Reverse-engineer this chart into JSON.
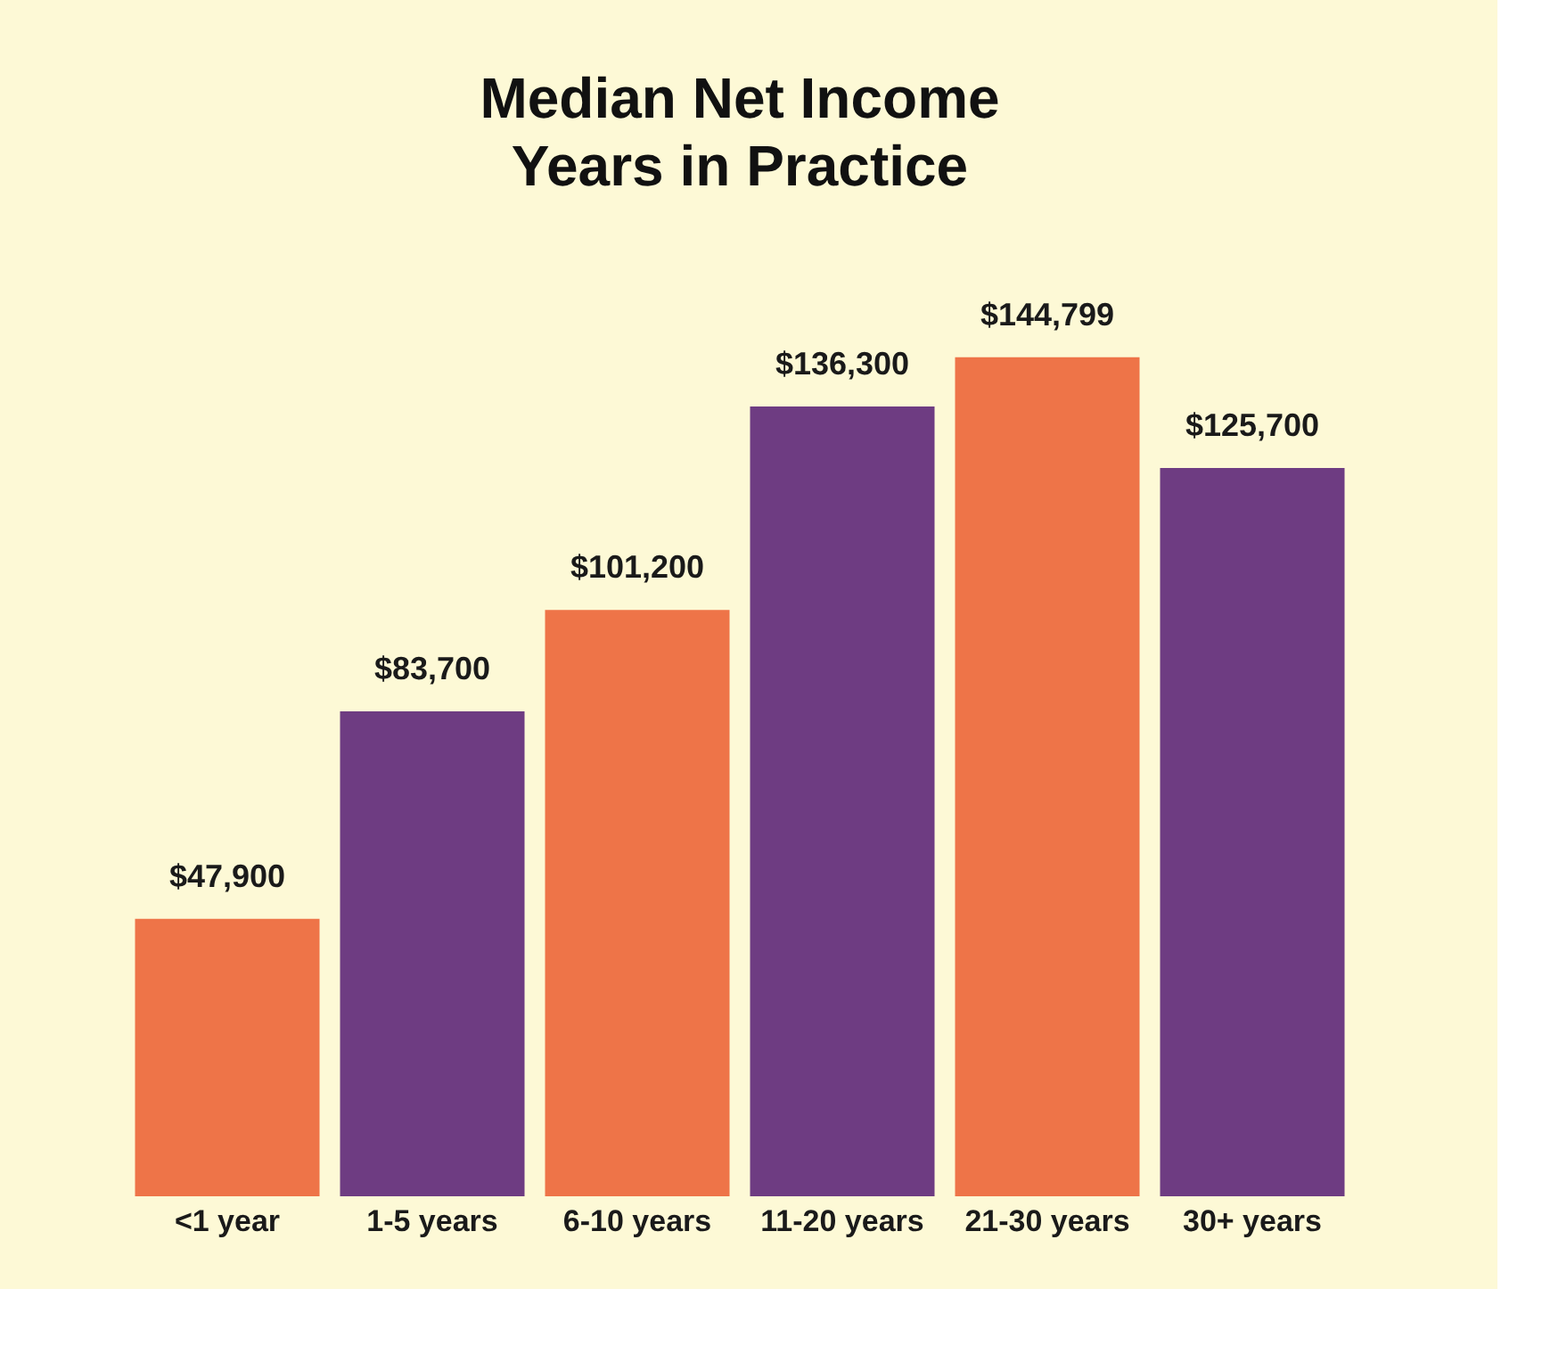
{
  "chart_data": {
    "type": "bar",
    "title": "Median Net Income\nYears in Practice",
    "categories": [
      "<1 year",
      "1-5 years",
      "6-10 years",
      "11-20 years",
      "21-30 years",
      "30+ years"
    ],
    "values": [
      47900,
      83700,
      101200,
      136300,
      144799,
      125700
    ],
    "colors": [
      "#ee7448",
      "#6e3c82",
      "#ee7448",
      "#6e3c82",
      "#ee7448",
      "#6e3c82"
    ],
    "value_labels": [
      "$47,900",
      "$83,700",
      "$101,200",
      "$136,300",
      "$144,799",
      "$125,700"
    ],
    "grid": false
  }
}
